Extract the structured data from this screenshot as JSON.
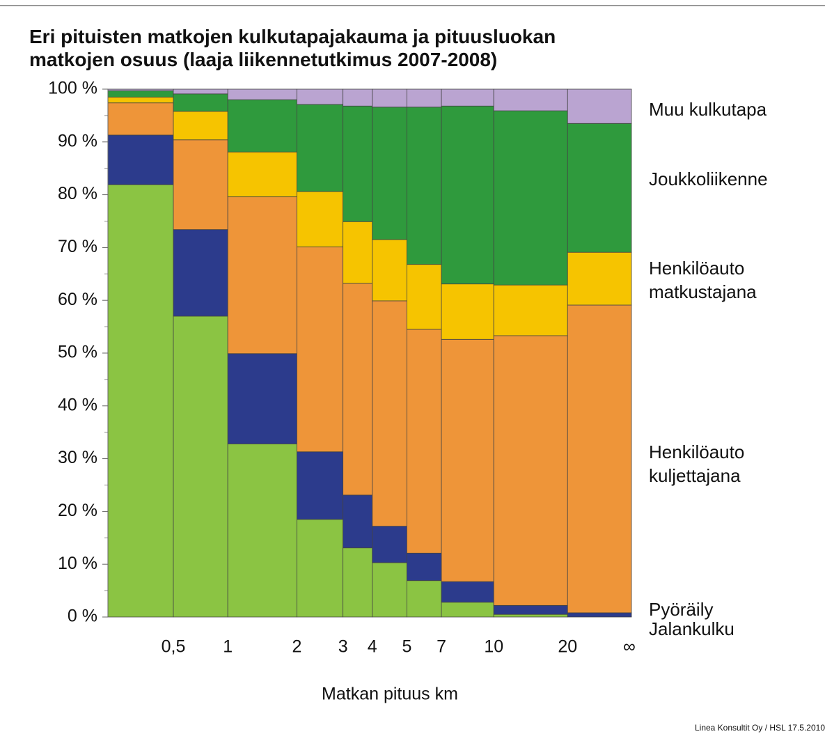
{
  "chart_data": {
    "type": "marimekko",
    "title": [
      "Eri pituisten matkojen kulkutapajakauma ja pituusluokan",
      "matkojen osuus (laaja liikennetutkimus 2007-2008)"
    ],
    "x_label": "Matkan pituus km",
    "source": "Linea Konsultit Oy / HSL 17.5.2010",
    "boundaries": [
      "0,5",
      "1",
      "2",
      "3",
      "4",
      "5",
      "7",
      "10",
      "20",
      "∞"
    ],
    "widths": [
      12.5,
      10.4,
      13.2,
      8.8,
      5.6,
      6.6,
      6.6,
      10.0,
      14.1,
      12.2
    ],
    "series": [
      {
        "name": "Jalankulku",
        "color": "#8bc443",
        "values": [
          81.9,
          57.0,
          32.8,
          18.5,
          13.1,
          10.3,
          6.9,
          2.8,
          0.5,
          0
        ]
      },
      {
        "name": "Pyöräily",
        "color": "#2c3b8c",
        "values": [
          9.4,
          16.4,
          17.1,
          12.8,
          10.0,
          6.9,
          5.2,
          3.9,
          1.7,
          0.8
        ]
      },
      {
        "name": "Henkilöauto kuljettajana",
        "color": "#ee9539",
        "values": [
          6.1,
          17.0,
          29.7,
          38.8,
          40.1,
          42.7,
          42.4,
          45.9,
          51.1,
          58.3
        ]
      },
      {
        "name": "Henkilöauto matkustajana",
        "color": "#f6c400",
        "values": [
          1.1,
          5.4,
          8.5,
          10.5,
          11.7,
          11.6,
          12.3,
          10.5,
          9.6,
          10.0
        ]
      },
      {
        "name": "Joukkoliikenne",
        "color": "#2f9a3d",
        "values": [
          1.2,
          3.3,
          9.9,
          16.5,
          21.9,
          25.1,
          29.8,
          33.7,
          33.0,
          24.4
        ]
      },
      {
        "name": "Muu kulkutapa",
        "color": "#baa4d1",
        "values": [
          0.3,
          0.9,
          2.0,
          2.9,
          3.2,
          3.4,
          3.4,
          3.2,
          4.1,
          6.5
        ]
      }
    ],
    "ylim": [
      0,
      100
    ],
    "yticks": [
      {
        "value": 0,
        "label": "0 %"
      },
      {
        "value": 10,
        "label": "10 %"
      },
      {
        "value": 20,
        "label": "20 %"
      },
      {
        "value": 30,
        "label": "30 %"
      },
      {
        "value": 40,
        "label": "40 %"
      },
      {
        "value": 50,
        "label": "50 %"
      },
      {
        "value": 60,
        "label": "60 %"
      },
      {
        "value": 70,
        "label": "70 %"
      },
      {
        "value": 80,
        "label": "80 %"
      },
      {
        "value": 90,
        "label": "90 %"
      },
      {
        "value": 100,
        "label": "100 %"
      }
    ],
    "minor_yticks": [
      5,
      15,
      25,
      35,
      45,
      55,
      65,
      75,
      85,
      95
    ]
  }
}
